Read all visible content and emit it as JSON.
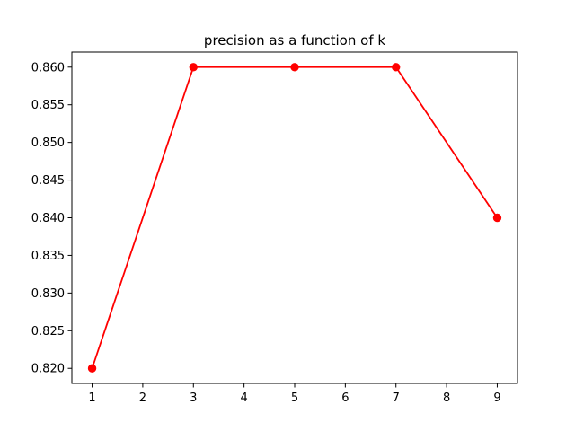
{
  "chart_data": {
    "type": "line",
    "title": "precision as a function of k",
    "xlabel": "",
    "ylabel": "",
    "x": [
      1,
      3,
      5,
      7,
      9
    ],
    "xticks": [
      1,
      2,
      3,
      4,
      5,
      6,
      7,
      8,
      9
    ],
    "xlim": [
      0.6,
      9.4
    ],
    "yticks": [
      0.82,
      0.825,
      0.83,
      0.835,
      0.84,
      0.845,
      0.85,
      0.855,
      0.86
    ],
    "ytick_labels": [
      "0.820",
      "0.825",
      "0.830",
      "0.835",
      "0.840",
      "0.845",
      "0.850",
      "0.855",
      "0.860"
    ],
    "ylim": [
      0.818,
      0.862
    ],
    "grid": false,
    "legend": "none",
    "series": [
      {
        "values": [
          0.82,
          0.86,
          0.86,
          0.86,
          0.84
        ],
        "color": "#ff0000",
        "marker": "circle"
      }
    ]
  }
}
